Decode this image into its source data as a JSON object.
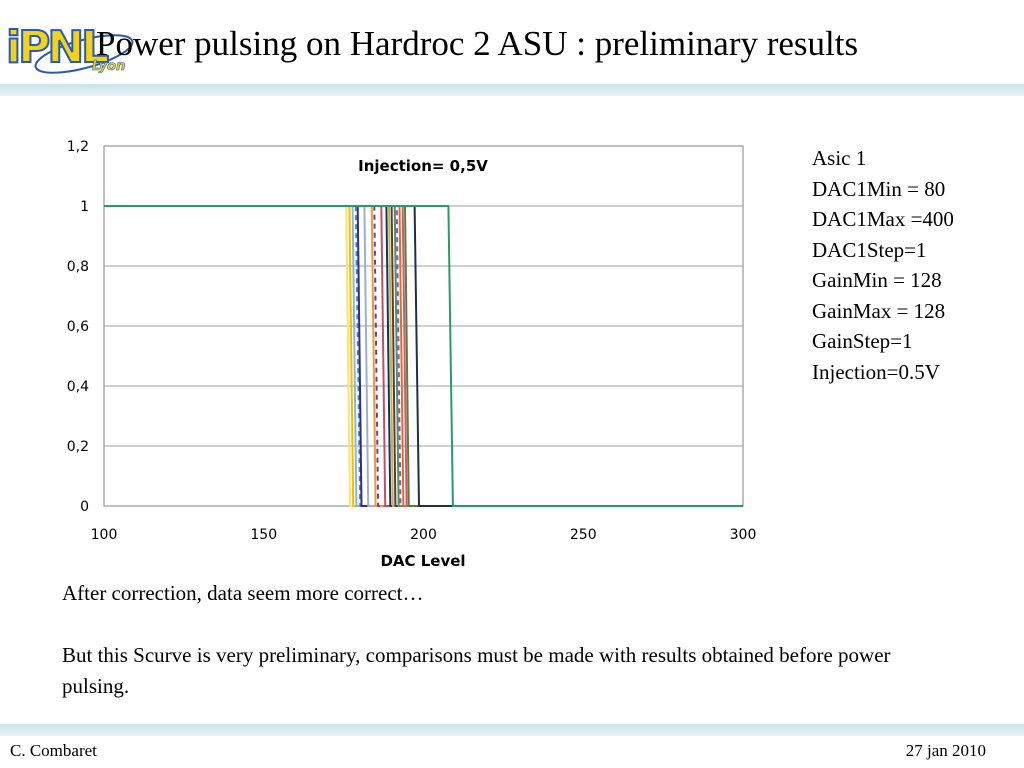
{
  "header": {
    "logo_text": "iPNL",
    "logo_subtext": "Lyon",
    "title": "Power pulsing on Hardroc 2 ASU : preliminary results"
  },
  "chart_data": {
    "type": "line",
    "title": "Injection= 0,5V",
    "xlabel": "DAC Level",
    "ylabel": "",
    "xlim": [
      100,
      300
    ],
    "ylim": [
      0,
      1.2
    ],
    "xticks": [
      100,
      150,
      200,
      250,
      300
    ],
    "xtick_labels": [
      "100",
      "150",
      "200",
      "250",
      "300"
    ],
    "yticks": [
      0,
      0.2,
      0.4,
      0.6,
      0.8,
      1,
      1.2
    ],
    "ytick_labels": [
      "0",
      "0,2",
      "0,4",
      "0,6",
      "0,8",
      "1",
      "1,2"
    ],
    "grid": "horizontal",
    "legend": "none",
    "series": [
      {
        "color": "#ffe070",
        "dash": "",
        "x": [
          100,
          175.8,
          177.0,
          300
        ],
        "y": [
          1,
          1,
          0,
          0
        ]
      },
      {
        "color": "#f0c000",
        "dash": "",
        "x": [
          100,
          176.8,
          178.0,
          300
        ],
        "y": [
          1,
          1,
          0,
          0
        ]
      },
      {
        "color": "#8fb4dc",
        "dash": "",
        "x": [
          100,
          177.8,
          179.0,
          300
        ],
        "y": [
          1,
          1,
          0,
          0
        ]
      },
      {
        "color": "#2f8fd8",
        "dash": "5,4",
        "x": [
          100,
          178.8,
          180.2,
          300
        ],
        "y": [
          1,
          1,
          0,
          0
        ]
      },
      {
        "color": "#3a2a80",
        "dash": "",
        "x": [
          100,
          179.4,
          180.6,
          300
        ],
        "y": [
          1,
          1,
          0,
          0
        ]
      },
      {
        "color": "#9ab0d0",
        "dash": "",
        "x": [
          100,
          181.5,
          182.7,
          300
        ],
        "y": [
          1,
          1,
          0,
          0
        ]
      },
      {
        "color": "#f29a2e",
        "dash": "",
        "x": [
          100,
          183.8,
          185.0,
          300
        ],
        "y": [
          1,
          1,
          0,
          0
        ]
      },
      {
        "color": "#6a3ab0",
        "dash": "5,4",
        "x": [
          100,
          184.6,
          185.8,
          300
        ],
        "y": [
          1,
          1,
          0,
          0
        ]
      },
      {
        "color": "#c0506a",
        "dash": "",
        "x": [
          100,
          186.8,
          188.0,
          300
        ],
        "y": [
          1,
          1,
          0,
          0
        ]
      },
      {
        "color": "#1a2f60",
        "dash": "",
        "x": [
          100,
          188.4,
          189.6,
          300
        ],
        "y": [
          1,
          1,
          0,
          0
        ]
      },
      {
        "color": "#b0c040",
        "dash": "",
        "x": [
          100,
          189.2,
          190.4,
          300
        ],
        "y": [
          1,
          1,
          0,
          0
        ]
      },
      {
        "color": "#7a2a3a",
        "dash": "",
        "x": [
          100,
          190.0,
          191.2,
          300
        ],
        "y": [
          1,
          1,
          0,
          0
        ]
      },
      {
        "color": "#3aa060",
        "dash": "",
        "x": [
          100,
          191.0,
          192.2,
          300
        ],
        "y": [
          1,
          1,
          0,
          0
        ]
      },
      {
        "color": "#9a4ac0",
        "dash": "5,4",
        "x": [
          100,
          191.6,
          192.8,
          300
        ],
        "y": [
          1,
          1,
          0,
          0
        ]
      },
      {
        "color": "#e0701a",
        "dash": "",
        "x": [
          100,
          192.5,
          193.7,
          300
        ],
        "y": [
          1,
          1,
          0,
          0
        ]
      },
      {
        "color": "#c85a90",
        "dash": "",
        "x": [
          100,
          193.5,
          194.7,
          300
        ],
        "y": [
          1,
          1,
          0,
          0
        ]
      },
      {
        "color": "#5a8030",
        "dash": "",
        "x": [
          100,
          194.2,
          195.4,
          300
        ],
        "y": [
          1,
          1,
          0,
          0
        ]
      },
      {
        "color": "#203040",
        "dash": "",
        "x": [
          100,
          197.2,
          198.6,
          300
        ],
        "y": [
          1,
          1,
          0,
          0
        ]
      },
      {
        "color": "#2a9a6a",
        "dash": "",
        "x": [
          100,
          207.8,
          209.2,
          300
        ],
        "y": [
          1,
          1,
          0,
          0
        ]
      }
    ]
  },
  "params": [
    "Asic 1",
    "DAC1Min = 80",
    "DAC1Max =400",
    "DAC1Step=1",
    "GainMin = 128",
    "GainMax = 128",
    "GainStep=1",
    "Injection=0.5V"
  ],
  "notes": {
    "line1": "After correction, data seem more correct…",
    "line2": "But this Scurve is very preliminary, comparisons must be made with results obtained before power pulsing."
  },
  "footer": {
    "author": "C. Combaret",
    "date": "27 jan 2010"
  }
}
